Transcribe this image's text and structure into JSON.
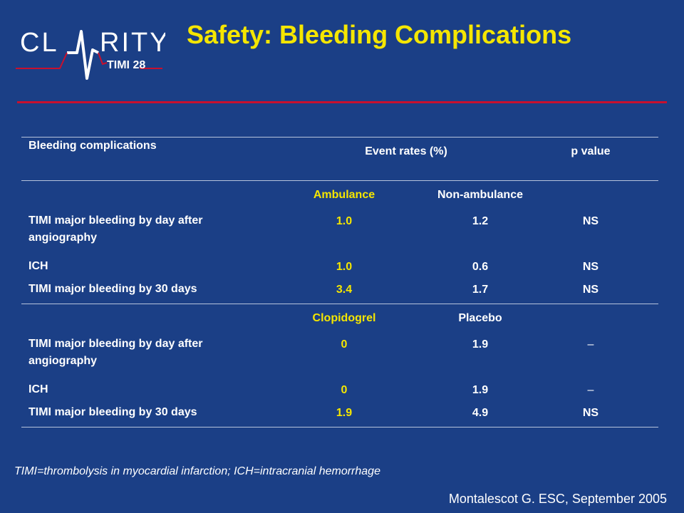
{
  "logo": {
    "main": "CL RITY",
    "sub": "TIMI 28"
  },
  "title": "Safety: Bleeding Complications",
  "table": {
    "headers": {
      "col1": "Bleeding complications",
      "col2": "Event rates (%)",
      "col4": "p value"
    },
    "group1": {
      "labels": {
        "a": "Ambulance",
        "b": "Non-ambulance"
      },
      "rows": [
        {
          "label": "TIMI major bleeding by day after angiography",
          "a": "1.0",
          "b": "1.2",
          "p": "NS"
        },
        {
          "label": "ICH",
          "a": "1.0",
          "b": "0.6",
          "p": "NS"
        },
        {
          "label": "TIMI major bleeding by 30 days",
          "a": "3.4",
          "b": "1.7",
          "p": "NS"
        }
      ]
    },
    "group2": {
      "labels": {
        "a": "Clopidogrel",
        "b": "Placebo"
      },
      "rows": [
        {
          "label": "TIMI major bleeding by day after angiography",
          "a": "0",
          "b": "1.9",
          "p": "–"
        },
        {
          "label": "ICH",
          "a": "0",
          "b": "1.9",
          "p": "–"
        },
        {
          "label": "TIMI major bleeding by 30 days",
          "a": "1.9",
          "b": "4.9",
          "p": "NS"
        }
      ]
    }
  },
  "footnote": "TIMI=thrombolysis in myocardial infarction; ICH=intracranial hemorrhage",
  "citation": "Montalescot G. ESC, September 2005"
}
